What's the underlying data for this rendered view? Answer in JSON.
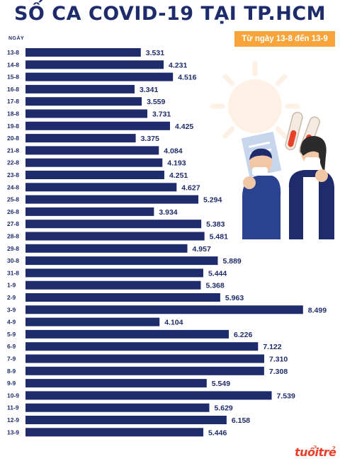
{
  "title": "SỐ CA COVID-19 TẠI TP.HCM",
  "date_range": "Từ ngày 13-8 đến 13-9",
  "logo_text": "tuổitrẻ",
  "colors": {
    "bar": "#1f2c6b",
    "title": "#1f2c6b",
    "badge": "#f7a53b",
    "logo": "#e8402a"
  },
  "chart_data": {
    "type": "bar",
    "orientation": "horizontal",
    "title": "SỐ CA COVID-19 TẠI TP.HCM",
    "subtitle": "Từ ngày 13-8 đến 13-9",
    "ylabel": "NGÀY",
    "xlabel": "",
    "xlim": [
      0,
      8800
    ],
    "grid": false,
    "categories": [
      "13-8",
      "14-8",
      "15-8",
      "16-8",
      "17-8",
      "18-8",
      "19-8",
      "20-8",
      "21-8",
      "22-8",
      "23-8",
      "24-8",
      "25-8",
      "26-8",
      "27-8",
      "28-8",
      "29-8",
      "30-8",
      "31-8",
      "1-9",
      "2-9",
      "3-9",
      "4-9",
      "5-9",
      "6-9",
      "7-9",
      "8-9",
      "9-9",
      "10-9",
      "11-9",
      "12-9",
      "13-9"
    ],
    "values": [
      3531,
      4231,
      4516,
      3341,
      3559,
      3731,
      4425,
      3375,
      4084,
      4193,
      4251,
      4627,
      5294,
      3934,
      5383,
      5481,
      4957,
      5889,
      5444,
      5368,
      5963,
      8499,
      4104,
      6226,
      7122,
      7310,
      7308,
      5549,
      7539,
      5629,
      6158,
      5446
    ],
    "labels": [
      "3.531",
      "4.231",
      "4.516",
      "3.341",
      "3.559",
      "3.731",
      "4.425",
      "3.375",
      "4.084",
      "4.193",
      "4.251",
      "4.627",
      "5.294",
      "3.934",
      "5.383",
      "5.481",
      "4.957",
      "5.889",
      "5.444",
      "5.368",
      "5.963",
      "8.499",
      "4.104",
      "6.226",
      "7.122",
      "7.310",
      "7.308",
      "5.549",
      "7.539",
      "5.629",
      "6.158",
      "5.446"
    ]
  }
}
